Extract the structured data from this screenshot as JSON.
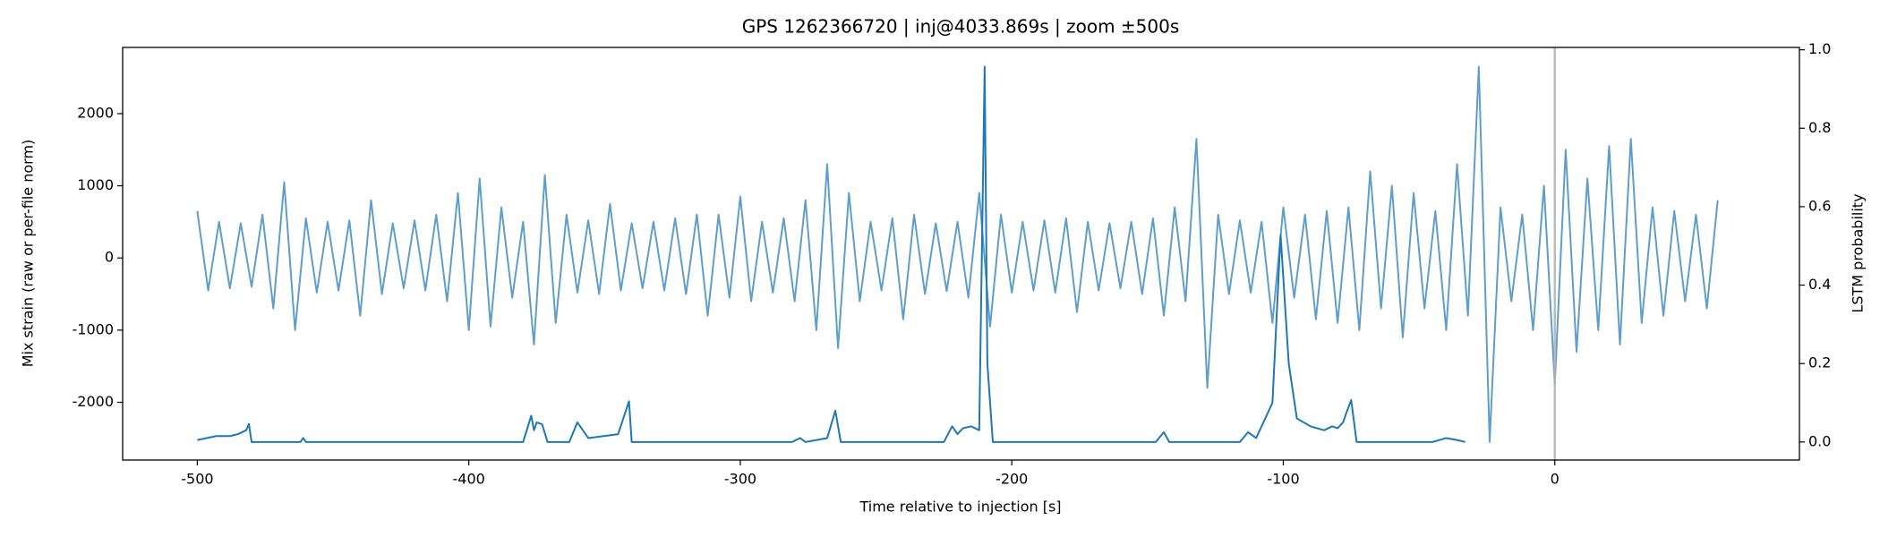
{
  "chart_data": {
    "type": "line",
    "title": "GPS 1262366720 | inj@4033.869s | zoom ±500s",
    "x_label": "Time relative to injection [s]",
    "y_label": "Mix strain (raw or per-file norm)",
    "y2_label": "LSTM probability",
    "xlim": [
      -527.5,
      90.1
    ],
    "ylim": [
      -2800,
      2917
    ],
    "y2lim": [
      -0.046,
      1.006
    ],
    "xticks": [
      -500,
      -400,
      -300,
      -200,
      -100,
      0
    ],
    "yticks": [
      -2000,
      -1000,
      0,
      1000,
      2000
    ],
    "y2ticks": [
      {
        "value": 0,
        "label": "0.0"
      },
      0.2,
      0.4,
      0.6,
      0.8,
      {
        "value": 1,
        "label": "1.0"
      }
    ],
    "vline": 0,
    "vline_color": "#b0b0b0",
    "series": [
      {
        "color": "#5f9ec9",
        "x": [
          -500,
          -496,
          -492,
          -488,
          -484,
          -480,
          -476,
          -472,
          -468,
          -464,
          -460,
          -456,
          -452,
          -448,
          -444,
          -440,
          -436,
          -432,
          -428,
          -424,
          -420,
          -416,
          -412,
          -408,
          -404,
          -400,
          -396,
          -392,
          -388,
          -384,
          -380,
          -376,
          -372,
          -368,
          -364,
          -360,
          -356,
          -352,
          -348,
          -344,
          -340,
          -336,
          -332,
          -328,
          -324,
          -320,
          -316,
          -312,
          -308,
          -304,
          -300,
          -296,
          -292,
          -288,
          -284,
          -280,
          -276,
          -272,
          -268,
          -264,
          -260,
          -256,
          -252,
          -248,
          -244,
          -240,
          -236,
          -232,
          -228,
          -224,
          -220,
          -216,
          -212,
          -208,
          -204,
          -200,
          -196,
          -192,
          -188,
          -184,
          -180,
          -176,
          -172,
          -168,
          -164,
          -160,
          -156,
          -152,
          -148,
          -144,
          -140,
          -136,
          -132,
          -128,
          -124,
          -120,
          -116,
          -112,
          -108,
          -104,
          -100,
          -96,
          -92,
          -88,
          -84,
          -80,
          -76,
          -72,
          -68,
          -64,
          -60,
          -56,
          -52,
          -48,
          -44,
          -40,
          -36,
          -32,
          -28,
          -24,
          -20,
          -16,
          -12,
          -8,
          -4,
          0,
          4,
          8,
          12,
          16,
          20,
          24,
          28,
          32,
          36,
          40,
          44,
          48,
          52,
          56,
          60
        ],
        "values": [
          650,
          -450,
          500,
          -420,
          480,
          -400,
          600,
          -700,
          1050,
          -1000,
          550,
          -480,
          500,
          -450,
          520,
          -800,
          800,
          -500,
          480,
          -420,
          520,
          -450,
          600,
          -600,
          900,
          -1000,
          1100,
          -950,
          700,
          -550,
          500,
          -1200,
          1150,
          -900,
          600,
          -480,
          520,
          -500,
          750,
          -450,
          480,
          -420,
          500,
          -450,
          550,
          -500,
          600,
          -800,
          600,
          -550,
          850,
          -600,
          500,
          -480,
          550,
          -600,
          800,
          -1000,
          1300,
          -1250,
          900,
          -600,
          500,
          -450,
          550,
          -850,
          600,
          -500,
          480,
          -460,
          500,
          -550,
          900,
          -950,
          600,
          -480,
          500,
          -450,
          520,
          -480,
          550,
          -750,
          500,
          -450,
          480,
          -420,
          500,
          -500,
          550,
          -800,
          700,
          -600,
          1650,
          -1800,
          600,
          -500,
          520,
          -480,
          500,
          -900,
          700,
          -550,
          600,
          -850,
          650,
          -900,
          700,
          -1000,
          1200,
          -700,
          1000,
          -1100,
          900,
          -700,
          650,
          -1000,
          1300,
          -800,
          2650,
          -2550,
          700,
          -600,
          600,
          -1000,
          1000,
          -1750,
          1500,
          -1300,
          1100,
          -1000,
          1550,
          -1200,
          1650,
          -900,
          700,
          -800,
          650,
          -600,
          600,
          -700,
          800
        ]
      },
      {
        "color": "#1f77b4",
        "axis": "y2",
        "x": [
          -500,
          -493,
          -488,
          -485,
          -482,
          -481,
          -480,
          -462,
          -461,
          -460,
          -380,
          -377,
          -376,
          -375,
          -373,
          -371,
          -363,
          -360,
          -356,
          -345,
          -341,
          -340,
          -281,
          -278,
          -276,
          -268,
          -265,
          -263,
          -225,
          -222,
          -220,
          -218,
          -215,
          -212,
          -210,
          -209,
          -207,
          -147,
          -144,
          -142,
          -116,
          -113,
          -110,
          -104,
          -101,
          -98,
          -95,
          -90,
          -85,
          -82,
          -80,
          -78,
          -77,
          -75,
          -73,
          -45,
          -40,
          -36,
          -33
        ],
        "values": [
          0.005,
          0.015,
          0.015,
          0.02,
          0.03,
          0.046,
          0.0,
          0.0,
          0.01,
          0.0,
          0.0,
          0.067,
          0.03,
          0.05,
          0.045,
          0.0,
          0.0,
          0.05,
          0.01,
          0.02,
          0.104,
          0.0,
          0.0,
          0.01,
          0.0,
          0.01,
          0.08,
          0.0,
          0.0,
          0.04,
          0.02,
          0.035,
          0.04,
          0.03,
          0.957,
          0.2,
          0.0,
          0.0,
          0.025,
          0.0,
          0.0,
          0.025,
          0.01,
          0.1,
          0.528,
          0.2,
          0.06,
          0.04,
          0.03,
          0.04,
          0.035,
          0.05,
          0.07,
          0.107,
          0.0,
          0.0,
          0.01,
          0.005,
          0.0
        ]
      }
    ]
  }
}
